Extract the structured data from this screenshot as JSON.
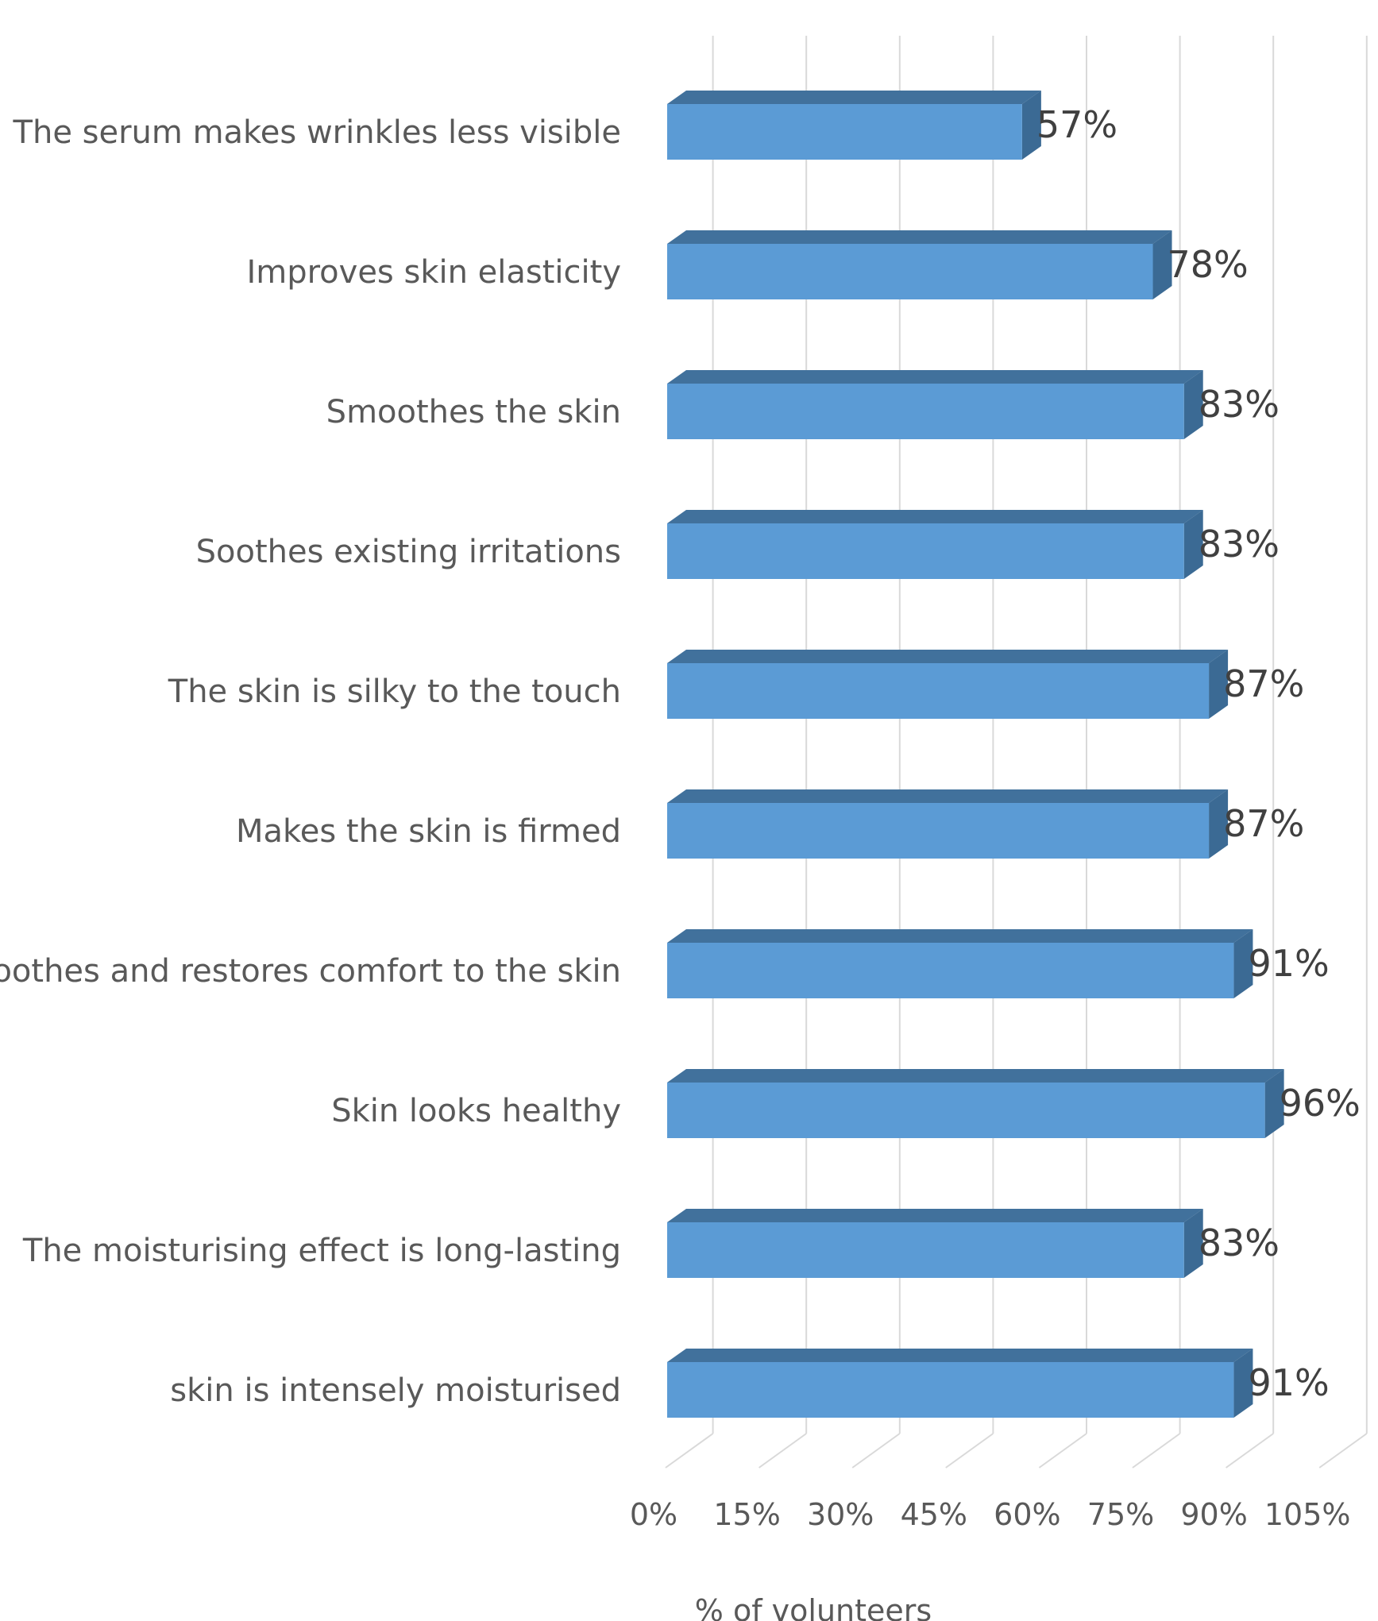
{
  "chart_data": {
    "type": "bar",
    "orientation": "horizontal",
    "style": "3d",
    "categories": [
      "The serum makes wrinkles less visible",
      "Improves skin elasticity",
      "Smoothes the skin",
      "Soothes existing irritations",
      "The skin is silky to the touch",
      "Makes the skin is firmed",
      "Soothes and restores comfort to the skin",
      "Skin looks healthy",
      "The moisturising effect is long-lasting",
      "skin is intensely moisturised"
    ],
    "values": [
      57,
      78,
      83,
      83,
      87,
      87,
      91,
      96,
      83,
      91
    ],
    "data_labels": [
      "57%",
      "78%",
      "83%",
      "83%",
      "87%",
      "87%",
      "91%",
      "96%",
      "83%",
      "91%"
    ],
    "xlim": [
      0,
      105
    ],
    "x_ticks": [
      0,
      15,
      30,
      45,
      60,
      75,
      90,
      105
    ],
    "x_tick_labels": [
      "0%",
      "15%",
      "30%",
      "45%",
      "60%",
      "75%",
      "90%",
      "105%"
    ],
    "xlabel": "% of volunteers",
    "grid": true,
    "legend": "none",
    "colors": {
      "bar_front": "#5b9bd5",
      "bar_top": "#41719c",
      "bar_side": "#3b6a94",
      "grid": "#d9d9d9",
      "text": "#595959",
      "value_text": "#404040"
    }
  }
}
